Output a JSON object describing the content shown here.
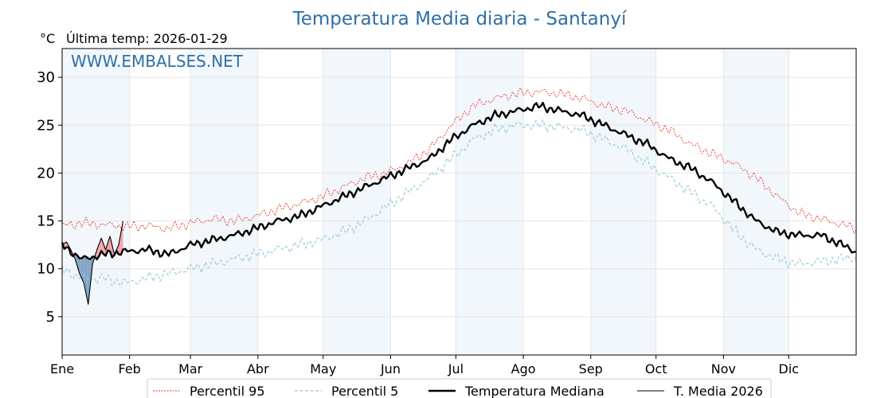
{
  "chart_data": {
    "type": "line",
    "title": "Temperatura Media diaria - Santanyí",
    "unit_label": "°C",
    "subtitle": "Última temp: 2026-01-29",
    "watermark": "WWW.EMBALSES.NET",
    "xlabel": "",
    "ylabel": "",
    "ylim": [
      1,
      33
    ],
    "xlim": [
      1,
      366
    ],
    "yticks": [
      5,
      10,
      15,
      20,
      25,
      30
    ],
    "months": [
      "Ene",
      "Feb",
      "Mar",
      "Abr",
      "May",
      "Jun",
      "Jul",
      "Ago",
      "Sep",
      "Oct",
      "Nov",
      "Dic"
    ],
    "month_start_days": [
      1,
      32,
      60,
      91,
      121,
      152,
      182,
      213,
      244,
      274,
      305,
      335
    ],
    "grid": true,
    "legend_position": "bottom-center",
    "series": [
      {
        "name": "Percentil 95",
        "color": "#e8342a",
        "style": "dotted",
        "x": [
          1,
          10,
          20,
          30,
          40,
          50,
          60,
          70,
          80,
          90,
          100,
          110,
          120,
          130,
          140,
          150,
          160,
          170,
          180,
          190,
          200,
          210,
          220,
          230,
          240,
          250,
          260,
          270,
          280,
          290,
          300,
          310,
          320,
          330,
          340,
          350,
          366
        ],
        "values": [
          14.5,
          14.8,
          14.6,
          14.4,
          14.5,
          14.2,
          14.8,
          15.2,
          15.0,
          15.5,
          16.2,
          16.8,
          17.5,
          18.5,
          19.5,
          20.0,
          21.0,
          22.5,
          25.0,
          27.0,
          27.8,
          28.3,
          28.5,
          28.3,
          27.8,
          27.0,
          26.5,
          25.5,
          24.5,
          23.0,
          22.0,
          21.0,
          19.5,
          17.5,
          15.8,
          15.2,
          14.2
        ]
      },
      {
        "name": "Percentil 5",
        "color": "#9ccbdb",
        "style": "dashed",
        "x": [
          1,
          10,
          20,
          30,
          40,
          50,
          60,
          70,
          80,
          90,
          100,
          110,
          120,
          130,
          140,
          150,
          160,
          170,
          180,
          190,
          200,
          210,
          220,
          230,
          240,
          250,
          260,
          270,
          280,
          290,
          300,
          310,
          320,
          330,
          340,
          350,
          366
        ],
        "values": [
          10.0,
          9.0,
          9.0,
          8.5,
          9.0,
          9.5,
          10.0,
          10.5,
          11.0,
          11.5,
          12.0,
          12.5,
          13.0,
          13.8,
          15.0,
          16.5,
          18.0,
          19.5,
          21.5,
          23.5,
          24.5,
          25.0,
          25.0,
          24.8,
          24.5,
          23.5,
          22.5,
          21.0,
          19.5,
          18.0,
          16.5,
          14.0,
          12.0,
          11.0,
          10.5,
          10.8,
          11.2
        ]
      },
      {
        "name": "Temperatura Mediana",
        "color": "#000000",
        "style": "solid-thick",
        "x": [
          1,
          10,
          20,
          30,
          40,
          50,
          60,
          70,
          80,
          90,
          100,
          110,
          120,
          130,
          140,
          150,
          160,
          170,
          180,
          190,
          200,
          210,
          220,
          230,
          240,
          250,
          260,
          270,
          280,
          290,
          300,
          310,
          320,
          330,
          340,
          350,
          366
        ],
        "values": [
          12.5,
          11.0,
          11.5,
          11.8,
          12.0,
          11.5,
          12.5,
          13.0,
          13.5,
          14.2,
          15.0,
          15.5,
          16.5,
          17.5,
          18.5,
          19.5,
          20.5,
          21.5,
          23.5,
          25.0,
          26.0,
          26.5,
          27.0,
          26.5,
          26.0,
          25.0,
          24.0,
          23.0,
          21.5,
          20.5,
          19.0,
          17.0,
          15.0,
          13.8,
          13.5,
          13.5,
          11.8
        ]
      },
      {
        "name": "T. Media 2026",
        "color": "#000000",
        "style": "solid-thin",
        "x": [
          1,
          3,
          5,
          7,
          9,
          11,
          13,
          15,
          17,
          19,
          21,
          23,
          25,
          27,
          29
        ],
        "values": [
          12.5,
          12.8,
          12.0,
          11.0,
          9.5,
          8.5,
          6.3,
          10.5,
          12.0,
          13.2,
          12.0,
          13.4,
          11.5,
          12.5,
          15.0
        ]
      }
    ]
  }
}
